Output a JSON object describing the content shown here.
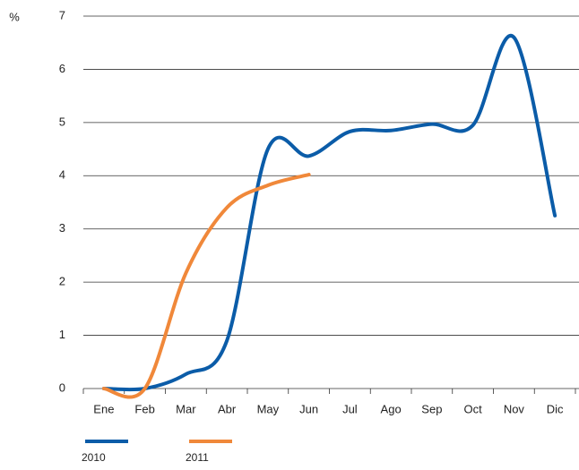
{
  "chart_data": {
    "type": "line",
    "y_label": "%",
    "categories": [
      "Ene",
      "Feb",
      "Mar",
      "Abr",
      "May",
      "Jun",
      "Jul",
      "Ago",
      "Sep",
      "Oct",
      "Nov",
      "Dic"
    ],
    "series": [
      {
        "name": "2010",
        "color": "#0b5ca8",
        "values": [
          0,
          0,
          0.27,
          0.9,
          4.5,
          4.37,
          4.83,
          4.85,
          4.97,
          4.95,
          6.6,
          3.25
        ]
      },
      {
        "name": "2011",
        "color": "#f0883a",
        "values": [
          0,
          0,
          2.17,
          3.4,
          3.82,
          4.02,
          null,
          null,
          null,
          null,
          null,
          null
        ]
      }
    ],
    "ylim": [
      0,
      7
    ],
    "yticks": [
      0,
      1,
      2,
      3,
      4,
      5,
      6,
      7
    ],
    "grid": true,
    "smooth": true
  }
}
